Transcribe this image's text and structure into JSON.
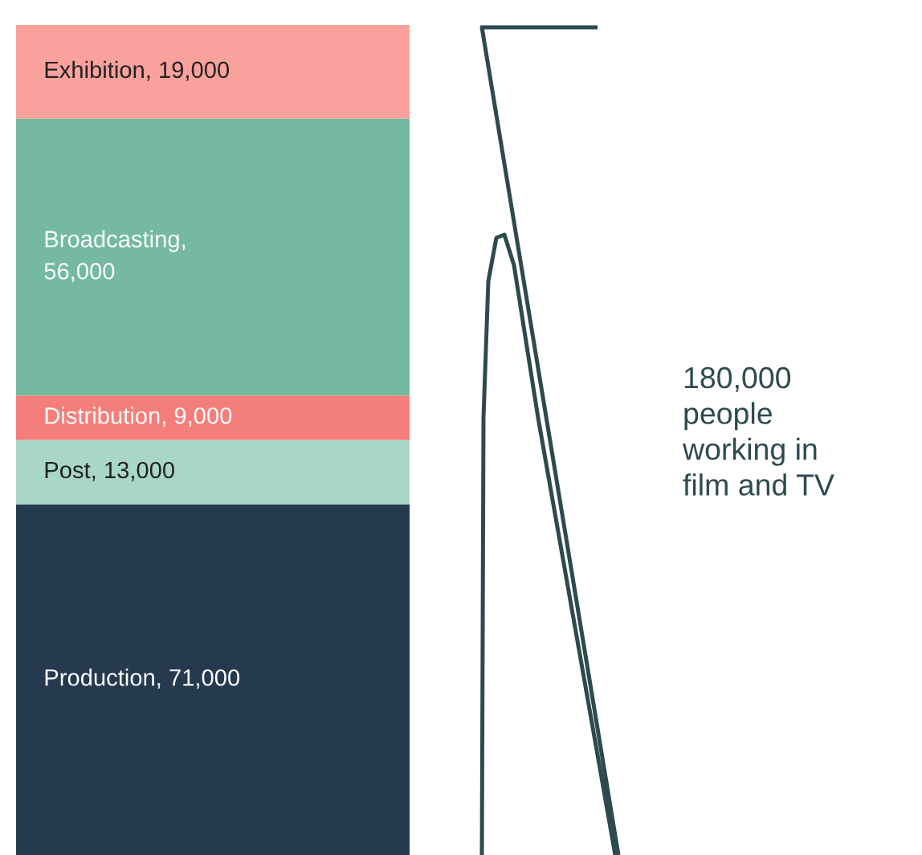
{
  "chart_data": {
    "type": "bar",
    "stacked": true,
    "categories": [
      null
    ],
    "series": [
      {
        "color": "#263a4f",
        "values": [
          71000
        ],
        "value_labels": [
          "Production, 71,000"
        ]
      },
      {
        "color": "#a9d7c6",
        "values": [
          13000
        ],
        "value_labels": [
          "Post, 13,000"
        ]
      },
      {
        "color": "#f47e7a",
        "values": [
          9000
        ],
        "value_labels": [
          "Distribution, 9,000"
        ]
      },
      {
        "color": "#74b9a0",
        "values": [
          56000
        ],
        "value_labels": [
          "Broadcasting,\n56,000"
        ]
      },
      {
        "color": "#f9a19c",
        "values": [
          19000
        ],
        "value_labels": [
          "Exhibition, 19,000"
        ]
      }
    ],
    "annotations": [
      "180,000\npeople\nworking in\nfilm and TV"
    ]
  }
}
